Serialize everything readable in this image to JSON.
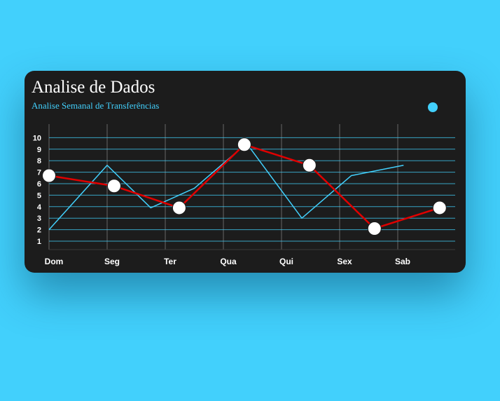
{
  "title": "Analise de Dados",
  "subtitle": "Analise Semanal de Transferências",
  "colors": {
    "background": "#42d0fc",
    "card": "#1c1c1c",
    "accent": "#42d0fc",
    "series_red": "#e00000",
    "markers": "#ffffff"
  },
  "chart_data": {
    "type": "line",
    "categories": [
      "Dom",
      "Seg",
      "Ter",
      "Qua",
      "Qui",
      "Sex",
      "Sab"
    ],
    "yticks": [
      "1",
      "2",
      "3",
      "4",
      "5",
      "6",
      "7",
      "8",
      "9",
      "10"
    ],
    "ylim": [
      0,
      11
    ],
    "grid": true,
    "legend": "top-right",
    "series": [
      {
        "color": "#42d0fc",
        "markers": false,
        "x": [
          0,
          1,
          1.75,
          2.5,
          3.4,
          4.35,
          5.2,
          6.1
        ],
        "values": [
          2,
          7.6,
          3.9,
          5.6,
          9.5,
          3,
          6.7,
          7.6
        ]
      },
      {
        "color": "#e00000",
        "markers": true,
        "x": [
          0,
          1.12,
          2.24,
          3.36,
          4.48,
          5.6,
          6.72
        ],
        "values": [
          6.7,
          5.8,
          3.9,
          9.4,
          7.6,
          2.1,
          3.9
        ]
      }
    ]
  }
}
